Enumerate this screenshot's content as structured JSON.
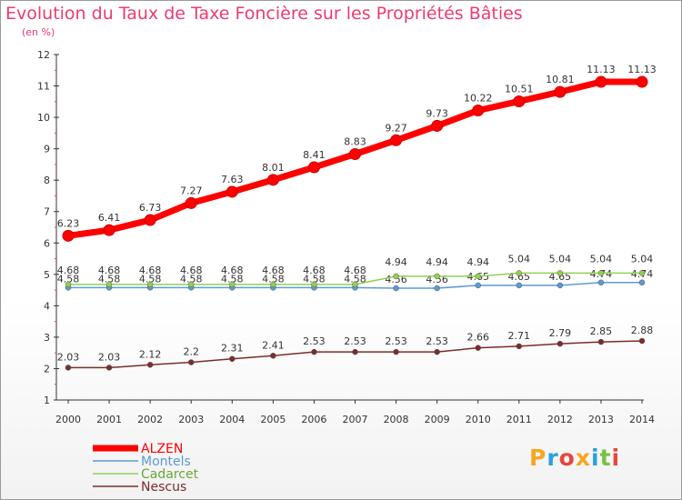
{
  "chart_data": {
    "type": "line",
    "title": "Evolution du Taux de Taxe Foncière sur les Propriétés Bâties",
    "ylabel": "(en %)",
    "xlabel": "",
    "ylim": [
      1,
      12
    ],
    "yticks": [
      1,
      2,
      3,
      4,
      5,
      6,
      7,
      8,
      9,
      10,
      11,
      12
    ],
    "x": [
      "2000",
      "2001",
      "2002",
      "2003",
      "2004",
      "2005",
      "2006",
      "2007",
      "2008",
      "2009",
      "2010",
      "2011",
      "2012",
      "2013",
      "2014"
    ],
    "series": [
      {
        "name": "ALZEN",
        "color": "#ff0000",
        "values": [
          6.23,
          6.41,
          6.73,
          7.27,
          7.63,
          8.01,
          8.41,
          8.83,
          9.27,
          9.73,
          10.22,
          10.51,
          10.81,
          11.13,
          11.13
        ],
        "labels": [
          "6.23",
          "6.41",
          "6.73",
          "7.27",
          "7.63",
          "8.01",
          "8.41",
          "8.83",
          "9.27",
          "9.73",
          "10.22",
          "10.51",
          "10.81",
          "11.13",
          "11.13"
        ]
      },
      {
        "name": "Montels",
        "color": "#5b9bd5",
        "values": [
          4.58,
          4.58,
          4.58,
          4.58,
          4.58,
          4.58,
          4.58,
          4.58,
          4.56,
          4.56,
          4.65,
          4.65,
          4.65,
          4.74,
          4.74
        ],
        "labels": [
          "4.58",
          "4.58",
          "4.58",
          "4.58",
          "4.58",
          "4.58",
          "4.58",
          "4.58",
          "4.56",
          "4.56",
          "4.65",
          "4.65",
          "4.65",
          "4.74",
          "4.74"
        ]
      },
      {
        "name": "Cadarcet",
        "color": "#92d050",
        "values": [
          4.68,
          4.68,
          4.68,
          4.68,
          4.68,
          4.68,
          4.68,
          4.68,
          4.94,
          4.94,
          4.94,
          5.04,
          5.04,
          5.04,
          5.04
        ],
        "labels": [
          "4.68",
          "4.68",
          "4.68",
          "4.68",
          "4.68",
          "4.68",
          "4.68",
          "4.68",
          "4.94",
          "4.94",
          "4.94",
          "5.04",
          "5.04",
          "5.04",
          "5.04"
        ]
      },
      {
        "name": "Nescus",
        "color": "#7b2c2c",
        "values": [
          2.03,
          2.03,
          2.12,
          2.2,
          2.31,
          2.41,
          2.53,
          2.53,
          2.53,
          2.53,
          2.66,
          2.71,
          2.79,
          2.85,
          2.88
        ],
        "labels": [
          "2.03",
          "2.03",
          "2.12",
          "2.2",
          "2.31",
          "2.41",
          "2.53",
          "2.53",
          "2.53",
          "2.53",
          "2.66",
          "2.71",
          "2.79",
          "2.85",
          "2.88"
        ]
      }
    ],
    "legend_position": "bottom-left",
    "grid": false
  },
  "logo": {
    "letters": [
      "P",
      "r",
      "o",
      "x",
      "i",
      "t",
      "i"
    ],
    "colors": [
      "#f5a623",
      "#2aa0e0",
      "#e8453c",
      "#f5a623",
      "#2aa0e0",
      "#7ac143",
      "#e8453c"
    ]
  }
}
